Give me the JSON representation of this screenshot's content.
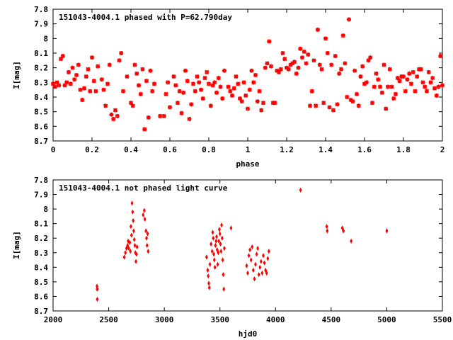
{
  "chart_data": [
    {
      "type": "scatter",
      "title": "151043-4004.1 phased with P=62.790day",
      "xlabel": "phase",
      "ylabel": "I[mag]",
      "xlim": [
        0,
        2
      ],
      "ylim": [
        8.7,
        7.8
      ],
      "y_inverted": true,
      "xticks": [
        "0",
        "0.2",
        "0.4",
        "0.6",
        "0.8",
        "1",
        "1.2",
        "1.4",
        "1.6",
        "1.8",
        "2"
      ],
      "xtick_values": [
        0,
        0.2,
        0.4,
        0.6,
        0.8,
        1,
        1.2,
        1.4,
        1.6,
        1.8,
        2
      ],
      "yticks": [
        "7.8",
        "7.9",
        "8",
        "8.1",
        "8.2",
        "8.3",
        "8.4",
        "8.5",
        "8.6",
        "8.7"
      ],
      "ytick_values": [
        7.8,
        7.9,
        8.0,
        8.1,
        8.2,
        8.3,
        8.4,
        8.5,
        8.6,
        8.7
      ],
      "marker_color": "#ff0000",
      "grid": false,
      "points": [
        [
          0.0,
          8.31
        ],
        [
          0.01,
          8.33
        ],
        [
          0.02,
          8.3
        ],
        [
          0.03,
          8.32
        ],
        [
          0.04,
          8.14
        ],
        [
          0.05,
          8.12
        ],
        [
          0.06,
          8.32
        ],
        [
          0.07,
          8.3
        ],
        [
          0.08,
          8.23
        ],
        [
          0.09,
          8.31
        ],
        [
          0.1,
          8.2
        ],
        [
          0.11,
          8.28
        ],
        [
          0.12,
          8.25
        ],
        [
          0.13,
          8.18
        ],
        [
          0.14,
          8.35
        ],
        [
          0.15,
          8.42
        ],
        [
          0.16,
          8.34
        ],
        [
          0.17,
          8.26
        ],
        [
          0.18,
          8.21
        ],
        [
          0.19,
          8.36
        ],
        [
          0.2,
          8.13
        ],
        [
          0.21,
          8.29
        ],
        [
          0.22,
          8.36
        ],
        [
          0.23,
          8.19
        ],
        [
          0.25,
          8.28
        ],
        [
          0.26,
          8.35
        ],
        [
          0.27,
          8.46
        ],
        [
          0.28,
          8.31
        ],
        [
          0.29,
          8.18
        ],
        [
          0.3,
          8.52
        ],
        [
          0.31,
          8.55
        ],
        [
          0.32,
          8.49
        ],
        [
          0.33,
          8.53
        ],
        [
          0.34,
          8.15
        ],
        [
          0.35,
          8.1
        ],
        [
          0.36,
          8.36
        ],
        [
          0.38,
          8.26
        ],
        [
          0.4,
          8.44
        ],
        [
          0.41,
          8.46
        ],
        [
          0.42,
          8.18
        ],
        [
          0.43,
          8.24
        ],
        [
          0.44,
          8.32
        ],
        [
          0.45,
          8.38
        ],
        [
          0.46,
          8.21
        ],
        [
          0.47,
          8.62
        ],
        [
          0.48,
          8.29
        ],
        [
          0.49,
          8.54
        ],
        [
          0.5,
          8.22
        ],
        [
          0.51,
          8.36
        ],
        [
          0.52,
          8.31
        ],
        [
          0.55,
          8.53
        ],
        [
          0.57,
          8.53
        ],
        [
          0.58,
          8.38
        ],
        [
          0.59,
          8.3
        ],
        [
          0.6,
          8.47
        ],
        [
          0.62,
          8.26
        ],
        [
          0.63,
          8.32
        ],
        [
          0.64,
          8.44
        ],
        [
          0.65,
          8.36
        ],
        [
          0.66,
          8.51
        ],
        [
          0.67,
          8.37
        ],
        [
          0.68,
          8.22
        ],
        [
          0.69,
          8.29
        ],
        [
          0.7,
          8.55
        ],
        [
          0.71,
          8.45
        ],
        [
          0.72,
          8.31
        ],
        [
          0.73,
          8.36
        ],
        [
          0.74,
          8.26
        ],
        [
          0.75,
          8.3
        ],
        [
          0.76,
          8.35
        ],
        [
          0.77,
          8.41
        ],
        [
          0.78,
          8.27
        ],
        [
          0.79,
          8.23
        ],
        [
          0.8,
          8.31
        ],
        [
          0.81,
          8.46
        ],
        [
          0.82,
          8.32
        ],
        [
          0.83,
          8.3
        ],
        [
          0.84,
          8.37
        ],
        [
          0.85,
          8.27
        ],
        [
          0.86,
          8.33
        ],
        [
          0.87,
          8.41
        ],
        [
          0.88,
          8.22
        ],
        [
          0.9,
          8.33
        ],
        [
          0.91,
          8.36
        ],
        [
          0.92,
          8.39
        ],
        [
          0.93,
          8.34
        ],
        [
          0.94,
          8.26
        ],
        [
          0.95,
          8.31
        ],
        [
          0.96,
          8.41
        ],
        [
          0.97,
          8.43
        ],
        [
          0.98,
          8.3
        ],
        [
          0.99,
          8.39
        ],
        [
          1.0,
          8.48
        ],
        [
          1.01,
          8.35
        ],
        [
          1.02,
          8.22
        ],
        [
          1.03,
          8.3
        ],
        [
          1.04,
          8.25
        ],
        [
          1.05,
          8.43
        ],
        [
          1.06,
          8.36
        ],
        [
          1.07,
          8.49
        ],
        [
          1.08,
          8.44
        ],
        [
          1.09,
          8.2
        ],
        [
          1.1,
          8.17
        ],
        [
          1.11,
          8.02
        ],
        [
          1.12,
          8.19
        ],
        [
          1.13,
          8.44
        ],
        [
          1.14,
          8.44
        ],
        [
          1.15,
          8.22
        ],
        [
          1.16,
          8.23
        ],
        [
          1.17,
          8.21
        ],
        [
          1.18,
          8.1
        ],
        [
          1.19,
          8.14
        ],
        [
          1.2,
          8.2
        ],
        [
          1.21,
          8.21
        ],
        [
          1.22,
          8.18
        ],
        [
          1.23,
          8.17
        ],
        [
          1.24,
          8.16
        ],
        [
          1.25,
          8.24
        ],
        [
          1.26,
          8.2
        ],
        [
          1.27,
          8.07
        ],
        [
          1.28,
          8.13
        ],
        [
          1.29,
          8.09
        ],
        [
          1.3,
          8.17
        ],
        [
          1.31,
          8.11
        ],
        [
          1.32,
          8.46
        ],
        [
          1.33,
          8.36
        ],
        [
          1.34,
          8.15
        ],
        [
          1.35,
          8.46
        ],
        [
          1.36,
          7.94
        ],
        [
          1.37,
          8.18
        ],
        [
          1.38,
          8.21
        ],
        [
          1.39,
          8.44
        ],
        [
          1.4,
          8.0
        ],
        [
          1.41,
          8.1
        ],
        [
          1.42,
          8.47
        ],
        [
          1.43,
          8.18
        ],
        [
          1.44,
          8.49
        ],
        [
          1.45,
          8.12
        ],
        [
          1.46,
          8.45
        ],
        [
          1.47,
          8.24
        ],
        [
          1.48,
          8.21
        ],
        [
          1.49,
          7.98
        ],
        [
          1.5,
          8.17
        ],
        [
          1.51,
          8.4
        ],
        [
          1.52,
          7.87
        ],
        [
          1.53,
          8.42
        ],
        [
          1.54,
          8.43
        ],
        [
          1.55,
          8.22
        ],
        [
          1.56,
          8.38
        ],
        [
          1.57,
          8.46
        ],
        [
          1.58,
          8.26
        ],
        [
          1.59,
          8.19
        ],
        [
          1.6,
          8.31
        ],
        [
          1.61,
          8.3
        ],
        [
          1.62,
          8.15
        ],
        [
          1.63,
          8.13
        ],
        [
          1.64,
          8.44
        ],
        [
          1.65,
          8.33
        ],
        [
          1.66,
          8.24
        ],
        [
          1.67,
          8.28
        ],
        [
          1.68,
          8.33
        ],
        [
          1.69,
          8.37
        ],
        [
          1.7,
          8.18
        ],
        [
          1.71,
          8.48
        ],
        [
          1.72,
          8.33
        ],
        [
          1.73,
          8.21
        ],
        [
          1.74,
          8.33
        ],
        [
          1.75,
          8.41
        ],
        [
          1.76,
          8.38
        ],
        [
          1.77,
          8.27
        ],
        [
          1.78,
          8.29
        ],
        [
          1.79,
          8.26
        ],
        [
          1.8,
          8.26
        ],
        [
          1.81,
          8.36
        ],
        [
          1.82,
          8.28
        ],
        [
          1.83,
          8.24
        ],
        [
          1.84,
          8.31
        ],
        [
          1.85,
          8.23
        ],
        [
          1.86,
          8.36
        ],
        [
          1.87,
          8.26
        ],
        [
          1.88,
          8.21
        ],
        [
          1.89,
          8.21
        ],
        [
          1.9,
          8.3
        ],
        [
          1.91,
          8.33
        ],
        [
          1.92,
          8.36
        ],
        [
          1.93,
          8.23
        ],
        [
          1.94,
          8.3
        ],
        [
          1.95,
          8.27
        ],
        [
          1.96,
          8.34
        ],
        [
          1.97,
          8.39
        ],
        [
          1.98,
          8.33
        ],
        [
          1.99,
          8.12
        ],
        [
          2.0,
          8.32
        ]
      ]
    },
    {
      "type": "scatter",
      "title": "151043-4004.1 not phased light curve",
      "xlabel": "hjd0",
      "ylabel": "I[mag]",
      "xlim": [
        2000,
        5500
      ],
      "ylim": [
        8.7,
        7.8
      ],
      "y_inverted": true,
      "xticks": [
        "2000",
        "2500",
        "3000",
        "3500",
        "4000",
        "4500",
        "5000",
        "5500"
      ],
      "xtick_values": [
        2000,
        2500,
        3000,
        3500,
        4000,
        4500,
        5000,
        5500
      ],
      "yticks": [
        "7.8",
        "7.9",
        "8",
        "8.1",
        "8.2",
        "8.3",
        "8.4",
        "8.5",
        "8.6",
        "8.7"
      ],
      "ytick_values": [
        7.8,
        7.9,
        8.0,
        8.1,
        8.2,
        8.3,
        8.4,
        8.5,
        8.6,
        8.7
      ],
      "marker_color": "#ff0000",
      "grid": false,
      "points": [
        [
          2395,
          8.53
        ],
        [
          2396,
          8.55
        ],
        [
          2397,
          8.62
        ],
        [
          2398,
          8.55
        ],
        [
          2640,
          8.33
        ],
        [
          2650,
          8.3
        ],
        [
          2660,
          8.27
        ],
        [
          2670,
          8.25
        ],
        [
          2675,
          8.22
        ],
        [
          2680,
          8.27
        ],
        [
          2690,
          8.23
        ],
        [
          2695,
          8.29
        ],
        [
          2700,
          8.12
        ],
        [
          2705,
          8.18
        ],
        [
          2710,
          7.96
        ],
        [
          2715,
          8.02
        ],
        [
          2720,
          8.08
        ],
        [
          2725,
          8.15
        ],
        [
          2730,
          8.21
        ],
        [
          2735,
          8.25
        ],
        [
          2740,
          8.3
        ],
        [
          2745,
          8.36
        ],
        [
          2750,
          8.31
        ],
        [
          2755,
          8.26
        ],
        [
          2810,
          8.04
        ],
        [
          2820,
          8.01
        ],
        [
          2825,
          8.07
        ],
        [
          2835,
          8.15
        ],
        [
          2840,
          8.2
        ],
        [
          2845,
          8.25
        ],
        [
          2850,
          8.17
        ],
        [
          2855,
          8.29
        ],
        [
          3380,
          8.33
        ],
        [
          3390,
          8.42
        ],
        [
          3395,
          8.46
        ],
        [
          3400,
          8.51
        ],
        [
          3405,
          8.54
        ],
        [
          3410,
          8.38
        ],
        [
          3420,
          8.24
        ],
        [
          3430,
          8.29
        ],
        [
          3435,
          8.16
        ],
        [
          3440,
          8.2
        ],
        [
          3445,
          8.31
        ],
        [
          3450,
          8.35
        ],
        [
          3455,
          8.4
        ],
        [
          3460,
          8.25
        ],
        [
          3465,
          8.22
        ],
        [
          3470,
          8.19
        ],
        [
          3475,
          8.28
        ],
        [
          3480,
          8.38
        ],
        [
          3485,
          8.3
        ],
        [
          3490,
          8.22
        ],
        [
          3495,
          8.14
        ],
        [
          3500,
          8.17
        ],
        [
          3505,
          8.24
        ],
        [
          3510,
          8.29
        ],
        [
          3515,
          8.11
        ],
        [
          3520,
          8.2
        ],
        [
          3525,
          8.35
        ],
        [
          3530,
          8.45
        ],
        [
          3535,
          8.55
        ],
        [
          3540,
          8.27
        ],
        [
          3600,
          8.13
        ],
        [
          3740,
          8.39
        ],
        [
          3750,
          8.44
        ],
        [
          3760,
          8.32
        ],
        [
          3770,
          8.28
        ],
        [
          3780,
          8.35
        ],
        [
          3790,
          8.26
        ],
        [
          3800,
          8.42
        ],
        [
          3810,
          8.48
        ],
        [
          3820,
          8.38
        ],
        [
          3830,
          8.31
        ],
        [
          3840,
          8.27
        ],
        [
          3850,
          8.45
        ],
        [
          3860,
          8.4
        ],
        [
          3870,
          8.36
        ],
        [
          3880,
          8.44
        ],
        [
          3890,
          8.32
        ],
        [
          3900,
          8.37
        ],
        [
          3910,
          8.42
        ],
        [
          3920,
          8.44
        ],
        [
          3930,
          8.34
        ],
        [
          3940,
          8.29
        ],
        [
          4225,
          7.87
        ],
        [
          4460,
          8.12
        ],
        [
          4465,
          8.15
        ],
        [
          4600,
          8.13
        ],
        [
          4610,
          8.15
        ],
        [
          4680,
          8.22
        ],
        [
          5000,
          8.15
        ]
      ]
    }
  ]
}
